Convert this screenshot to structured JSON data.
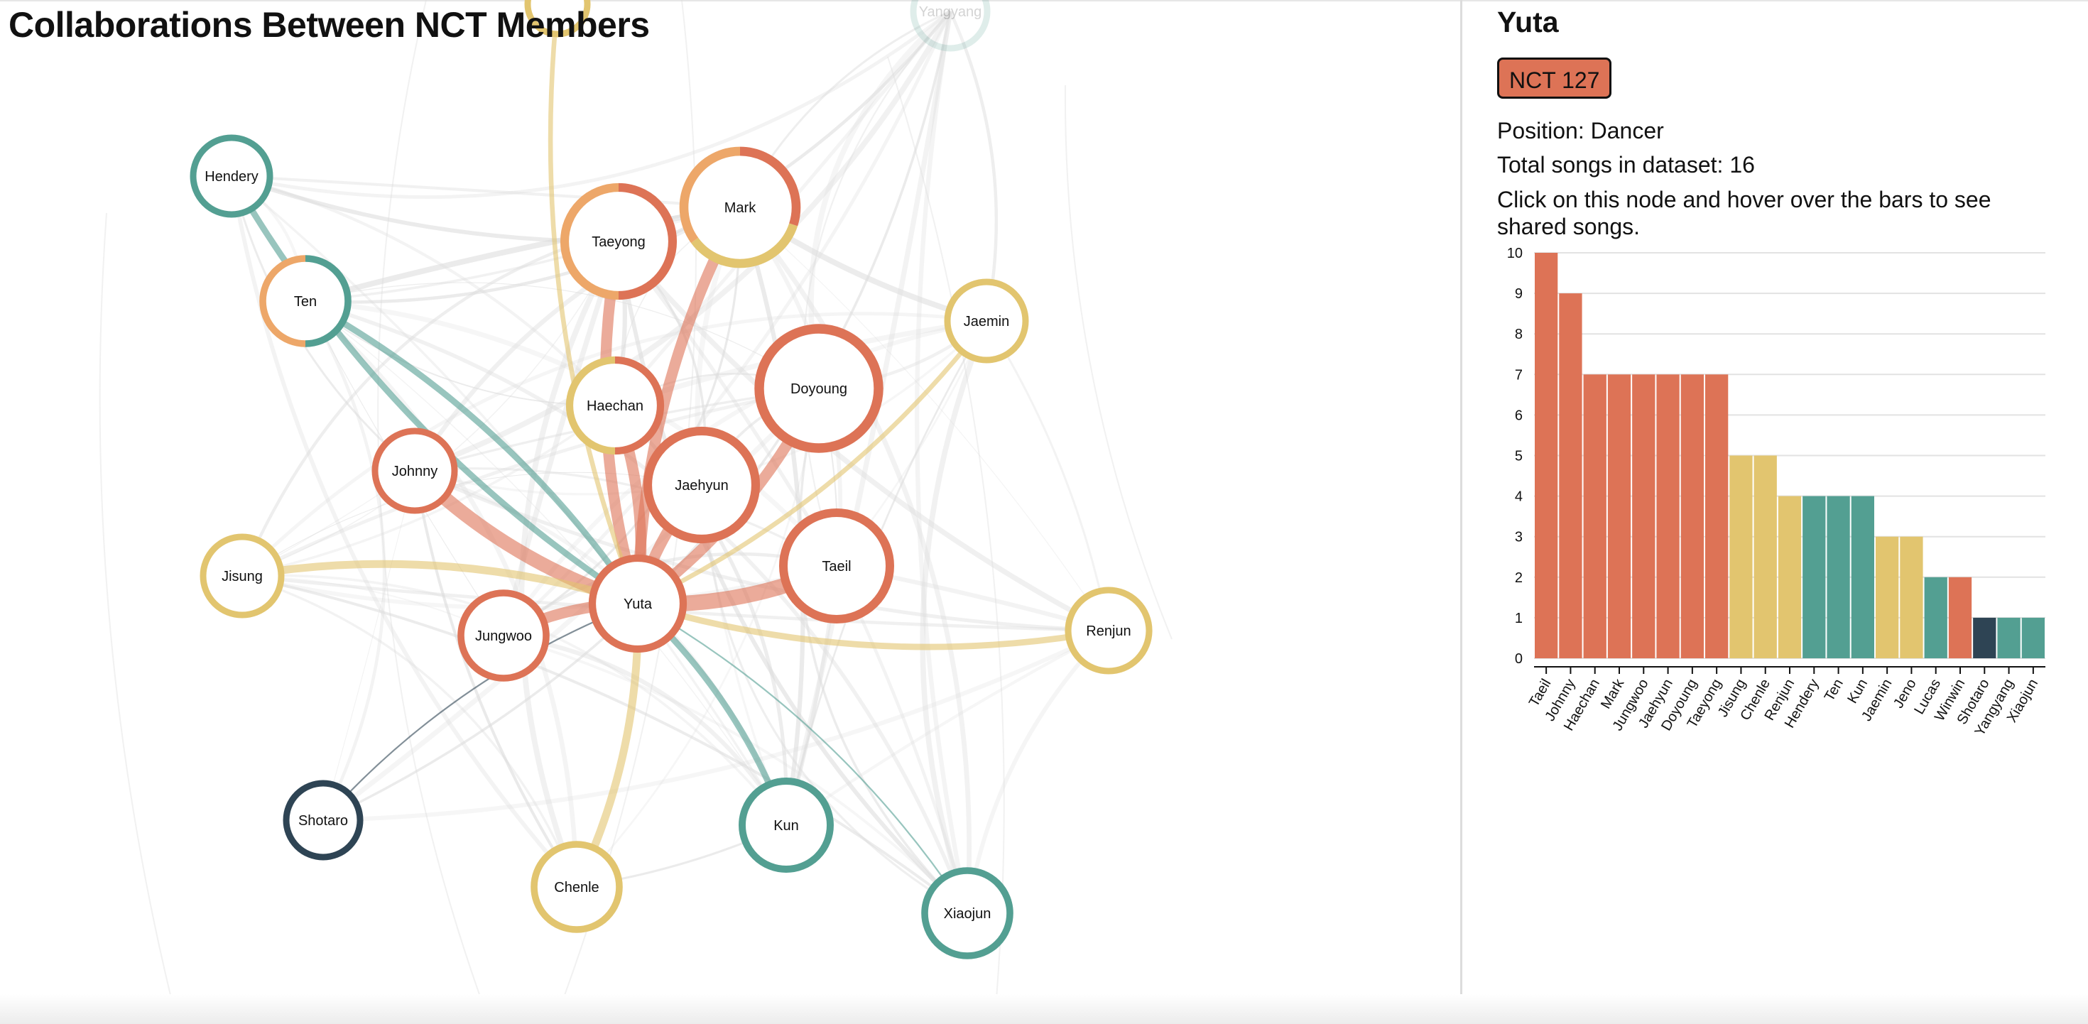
{
  "page": {
    "title": "Collaborations Between NCT Members"
  },
  "colors": {
    "nct127": "#dd7356",
    "dream": "#e2c56f",
    "wayv": "#539f92",
    "nct_u": "#eda769",
    "nct_new": "#2e4454",
    "grid": "#e2e2e2",
    "bg_edge": "#dcdcdc"
  },
  "graph": {
    "nodes": [
      {
        "id": "Yangyang",
        "label": "Yangyang",
        "faded": true,
        "segments": [
          {
            "color": "#539f92",
            "frac": 1
          }
        ]
      },
      {
        "id": "Hendery",
        "label": "Hendery",
        "segments": [
          {
            "color": "#539f92",
            "frac": 1
          }
        ]
      },
      {
        "id": "Ten",
        "label": "Ten",
        "segments": [
          {
            "color": "#539f92",
            "frac": 0.5
          },
          {
            "color": "#eda769",
            "frac": 0.5
          }
        ]
      },
      {
        "id": "Taeyong",
        "label": "Taeyong",
        "segments": [
          {
            "color": "#dd7356",
            "frac": 0.5
          },
          {
            "color": "#eda769",
            "frac": 0.5
          }
        ]
      },
      {
        "id": "Mark",
        "label": "Mark",
        "segments": [
          {
            "color": "#dd7356",
            "frac": 0.3
          },
          {
            "color": "#e2c56f",
            "frac": 0.35
          },
          {
            "color": "#eda769",
            "frac": 0.35
          }
        ]
      },
      {
        "id": "Jaemin",
        "label": "Jaemin",
        "segments": [
          {
            "color": "#e2c56f",
            "frac": 1
          }
        ]
      },
      {
        "id": "Haechan",
        "label": "Haechan",
        "segments": [
          {
            "color": "#dd7356",
            "frac": 0.5
          },
          {
            "color": "#e2c56f",
            "frac": 0.5
          }
        ]
      },
      {
        "id": "Doyoung",
        "label": "Doyoung",
        "segments": [
          {
            "color": "#dd7356",
            "frac": 1
          }
        ]
      },
      {
        "id": "Johnny",
        "label": "Johnny",
        "segments": [
          {
            "color": "#dd7356",
            "frac": 1
          }
        ]
      },
      {
        "id": "Jaehyun",
        "label": "Jaehyun",
        "segments": [
          {
            "color": "#dd7356",
            "frac": 1
          }
        ]
      },
      {
        "id": "Jisung",
        "label": "Jisung",
        "segments": [
          {
            "color": "#e2c56f",
            "frac": 1
          }
        ]
      },
      {
        "id": "Taeil",
        "label": "Taeil",
        "segments": [
          {
            "color": "#dd7356",
            "frac": 1
          }
        ]
      },
      {
        "id": "Yuta",
        "label": "Yuta",
        "segments": [
          {
            "color": "#dd7356",
            "frac": 1
          }
        ]
      },
      {
        "id": "Jungwoo",
        "label": "Jungwoo",
        "segments": [
          {
            "color": "#dd7356",
            "frac": 1
          }
        ]
      },
      {
        "id": "Renjun",
        "label": "Renjun",
        "segments": [
          {
            "color": "#e2c56f",
            "frac": 1
          }
        ]
      },
      {
        "id": "Shotaro",
        "label": "Shotaro",
        "segments": [
          {
            "color": "#2e4454",
            "frac": 1
          }
        ]
      },
      {
        "id": "Kun",
        "label": "Kun",
        "segments": [
          {
            "color": "#539f92",
            "frac": 1
          }
        ]
      },
      {
        "id": "Chenle",
        "label": "Chenle",
        "segments": [
          {
            "color": "#e2c56f",
            "frac": 1
          }
        ]
      },
      {
        "id": "Xiaojun",
        "label": "Xiaojun",
        "segments": [
          {
            "color": "#539f92",
            "frac": 1
          }
        ]
      },
      {
        "id": "TopNode",
        "label": "",
        "faded": false,
        "segments": [
          {
            "color": "#e2c56f",
            "frac": 1
          }
        ]
      }
    ],
    "highlight_edges": [
      {
        "to": "Taeil",
        "songs": 10,
        "color": "#dd7356"
      },
      {
        "to": "Johnny",
        "songs": 9,
        "color": "#dd7356"
      },
      {
        "to": "Haechan",
        "songs": 7,
        "color": "#dd7356"
      },
      {
        "to": "Mark",
        "songs": 7,
        "color": "#dd7356"
      },
      {
        "to": "Jungwoo",
        "songs": 7,
        "color": "#dd7356"
      },
      {
        "to": "Jaehyun",
        "songs": 7,
        "color": "#dd7356"
      },
      {
        "to": "Doyoung",
        "songs": 7,
        "color": "#dd7356"
      },
      {
        "to": "Taeyong",
        "songs": 7,
        "color": "#dd7356"
      },
      {
        "to": "Jisung",
        "songs": 5,
        "color": "#e2c56f"
      },
      {
        "to": "Chenle",
        "songs": 5,
        "color": "#e2c56f"
      },
      {
        "to": "Renjun",
        "songs": 4,
        "color": "#e2c56f"
      },
      {
        "to": "Hendery",
        "songs": 4,
        "color": "#539f92"
      },
      {
        "to": "Ten",
        "songs": 4,
        "color": "#539f92"
      },
      {
        "to": "Kun",
        "songs": 4,
        "color": "#539f92"
      },
      {
        "to": "Jaemin",
        "songs": 3,
        "color": "#e2c56f"
      },
      {
        "to": "Xiaojun",
        "songs": 1,
        "color": "#539f92"
      },
      {
        "to": "Shotaro",
        "songs": 1,
        "color": "#2e4454"
      },
      {
        "to": "TopNode",
        "songs": 3,
        "color": "#e2c56f"
      }
    ]
  },
  "panel": {
    "name": "Yuta",
    "group": "NCT 127",
    "group_color": "#dd7356",
    "position_text": "Position: Dancer",
    "songs_text": "Total songs in dataset: 16",
    "hint": "Click on this node and hover over the bars to see shared songs."
  },
  "chart_data": {
    "type": "bar",
    "title": "",
    "xlabel": "",
    "ylabel": "",
    "ylim": [
      0,
      10
    ],
    "yticks": [
      0,
      1,
      2,
      3,
      4,
      5,
      6,
      7,
      8,
      9,
      10
    ],
    "grid": true,
    "categories": [
      "Taeil",
      "Johnny",
      "Haechan",
      "Mark",
      "Jungwoo",
      "Jaehyun",
      "Doyoung",
      "Taeyong",
      "Jisung",
      "Chenle",
      "Renjun",
      "Hendery",
      "Ten",
      "Kun",
      "Jaemin",
      "Jeno",
      "Lucas",
      "Winwin",
      "Shotaro",
      "Yangyang",
      "Xiaojun"
    ],
    "values": [
      10,
      9,
      7,
      7,
      7,
      7,
      7,
      7,
      5,
      5,
      4,
      4,
      4,
      4,
      3,
      3,
      2,
      2,
      1,
      1,
      1
    ],
    "bar_colors": [
      "#dd7356",
      "#dd7356",
      "#dd7356",
      "#dd7356",
      "#dd7356",
      "#dd7356",
      "#dd7356",
      "#dd7356",
      "#e2c56f",
      "#e2c56f",
      "#e2c56f",
      "#539f92",
      "#539f92",
      "#539f92",
      "#e2c56f",
      "#e2c56f",
      "#539f92",
      "#dd7356",
      "#2e4454",
      "#539f92",
      "#539f92"
    ]
  }
}
